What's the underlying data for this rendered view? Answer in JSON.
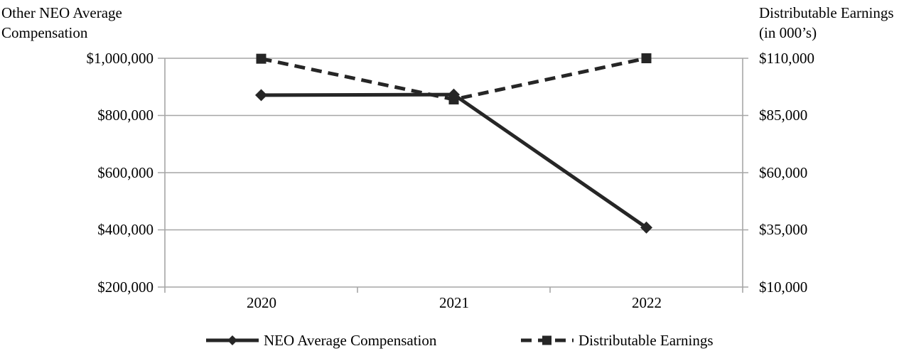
{
  "chart_data": {
    "type": "line",
    "categories": [
      "2020",
      "2021",
      "2022"
    ],
    "series": [
      {
        "name": "NEO Average Compensation",
        "axis": "left",
        "line_style": "solid",
        "marker": "diamond",
        "values": [
          871000,
          873000,
          408000
        ]
      },
      {
        "name": "Distributable Earnings",
        "axis": "right",
        "line_style": "dashed",
        "marker": "square",
        "values": [
          109800,
          92000,
          110000
        ]
      }
    ],
    "left_axis": {
      "title": "Other NEO Average\nCompensation",
      "min": 200000,
      "max": 1000000,
      "ticks": [
        {
          "label": "$1,000,000",
          "value": 1000000
        },
        {
          "label": "$800,000",
          "value": 800000
        },
        {
          "label": "$600,000",
          "value": 600000
        },
        {
          "label": "$400,000",
          "value": 400000
        },
        {
          "label": "$200,000",
          "value": 200000
        }
      ]
    },
    "right_axis": {
      "title": "Distributable Earnings\n(in 000’s)",
      "min": 10000,
      "max": 110000,
      "ticks": [
        {
          "label": "$110,000",
          "value": 110000
        },
        {
          "label": "$85,000",
          "value": 85000
        },
        {
          "label": "$60,000",
          "value": 60000
        },
        {
          "label": "$35,000",
          "value": 35000
        },
        {
          "label": "$10,000",
          "value": 10000
        }
      ]
    },
    "legend": [
      {
        "label": "NEO Average Compensation",
        "line_style": "solid",
        "marker": "diamond"
      },
      {
        "label": "Distributable Earnings",
        "line_style": "dashed",
        "marker": "square"
      }
    ],
    "legend_position": "bottom",
    "grid": true,
    "colors": {
      "series": "#262626",
      "grid": "#a6a6a6",
      "text": "#000000"
    }
  }
}
